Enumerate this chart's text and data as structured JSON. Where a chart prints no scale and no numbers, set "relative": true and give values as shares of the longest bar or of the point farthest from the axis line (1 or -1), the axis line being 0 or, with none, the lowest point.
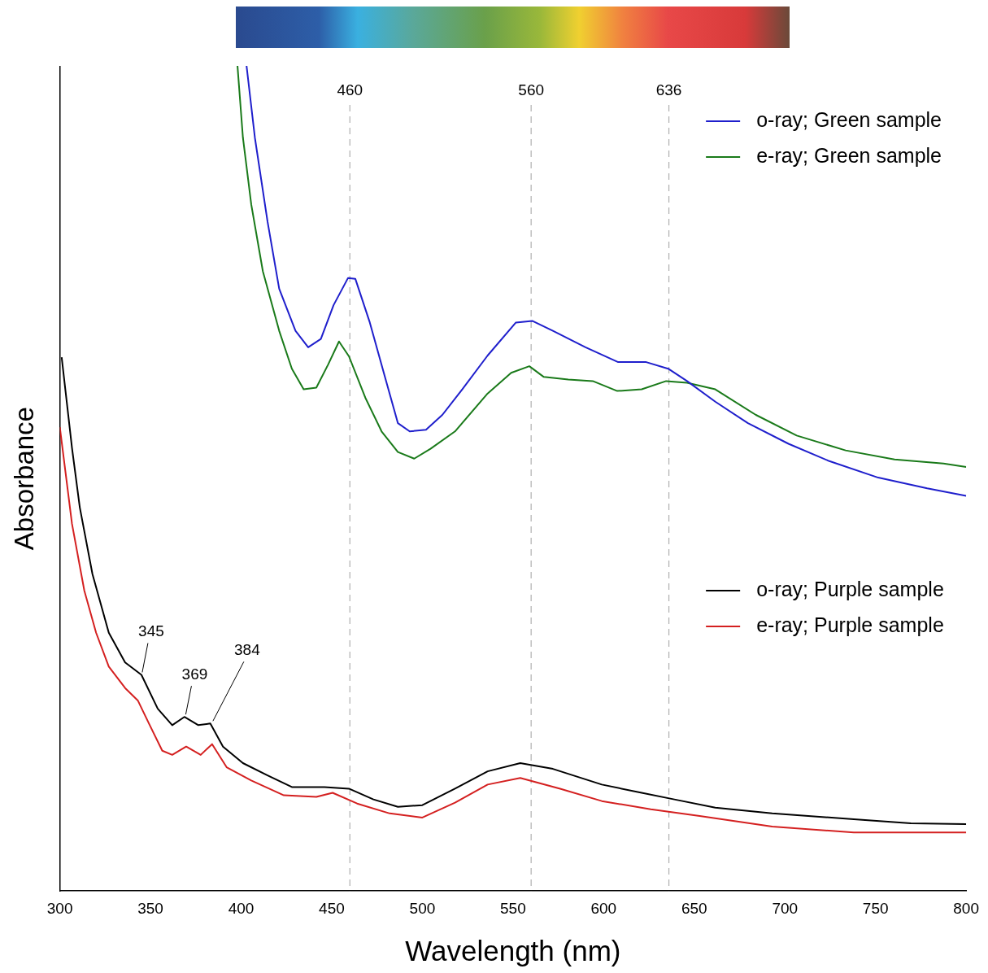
{
  "chart_data": {
    "type": "line",
    "relative": true,
    "xlabel": "Wavelength (nm)",
    "ylabel": "Absorbance",
    "xlim": [
      300,
      800
    ],
    "xticks": [
      300,
      350,
      400,
      450,
      500,
      550,
      600,
      650,
      700,
      750,
      800
    ],
    "grid": false,
    "legend": "right",
    "marker": "none",
    "line_style": "solid",
    "series": [
      {
        "name": "o-ray; Green sample",
        "color": "#1f1fcc",
        "x": [
          403,
          407.6,
          414.6,
          421,
          430,
          437,
          444,
          451,
          459,
          463,
          471,
          480,
          486.5,
          493,
          502,
          511,
          522,
          536,
          551.6,
          560.6,
          572,
          590,
          608,
          623.5,
          635.6,
          646,
          661.6,
          679.6,
          702,
          724.5,
          751.5,
          778.5,
          800
        ],
        "values": [
          1.0,
          0.913,
          0.811,
          0.73,
          0.679,
          0.659,
          0.669,
          0.71,
          0.743,
          0.742,
          0.689,
          0.618,
          0.567,
          0.557,
          0.559,
          0.577,
          0.608,
          0.649,
          0.689,
          0.691,
          0.679,
          0.659,
          0.641,
          0.641,
          0.633,
          0.618,
          0.593,
          0.567,
          0.542,
          0.521,
          0.501,
          0.488,
          0.479
        ]
      },
      {
        "name": "e-ray; Green sample",
        "color": "#1a7a1a",
        "x": [
          398,
          401,
          405.6,
          412,
          421,
          428,
          434.5,
          441.5,
          448,
          454,
          459.5,
          468.5,
          477.5,
          486.5,
          495.5,
          504.5,
          518,
          536,
          549,
          559,
          567,
          580.5,
          594,
          607.5,
          621,
          634.5,
          646,
          661.6,
          684,
          706.5,
          733.5,
          760.5,
          787.5,
          800
        ],
        "values": [
          1.0,
          0.913,
          0.832,
          0.751,
          0.679,
          0.633,
          0.608,
          0.61,
          0.638,
          0.666,
          0.648,
          0.598,
          0.557,
          0.532,
          0.524,
          0.536,
          0.557,
          0.603,
          0.628,
          0.636,
          0.623,
          0.62,
          0.618,
          0.606,
          0.608,
          0.618,
          0.616,
          0.608,
          0.577,
          0.552,
          0.534,
          0.523,
          0.518,
          0.514
        ]
      },
      {
        "name": "o-ray; Purple sample",
        "color": "#000000",
        "x": [
          301,
          306.7,
          311,
          318,
          327,
          336,
          345,
          354,
          362,
          368.7,
          376.4,
          383,
          390,
          401,
          414.6,
          428,
          446,
          459.5,
          473,
          486.5,
          500,
          518,
          536,
          554,
          572,
          599,
          621,
          639,
          661.6,
          693,
          738,
          769.5,
          800
        ],
        "values": [
          0.647,
          0.537,
          0.465,
          0.384,
          0.313,
          0.277,
          0.262,
          0.221,
          0.201,
          0.211,
          0.201,
          0.203,
          0.175,
          0.155,
          0.14,
          0.126,
          0.126,
          0.124,
          0.111,
          0.102,
          0.104,
          0.124,
          0.145,
          0.155,
          0.148,
          0.129,
          0.119,
          0.111,
          0.101,
          0.094,
          0.087,
          0.082,
          0.081
        ]
      },
      {
        "name": "e-ray; Purple sample",
        "color": "#d42020",
        "x": [
          300,
          306.7,
          313.5,
          320,
          327,
          336,
          343,
          349.6,
          356.5,
          362,
          369.7,
          377.7,
          384,
          392,
          405.6,
          423.6,
          441.5,
          450.5,
          464,
          482,
          500,
          518,
          536,
          554,
          576,
          599,
          626,
          653,
          693,
          738,
          800
        ],
        "values": [
          0.562,
          0.445,
          0.364,
          0.313,
          0.272,
          0.246,
          0.231,
          0.201,
          0.17,
          0.165,
          0.175,
          0.165,
          0.178,
          0.15,
          0.134,
          0.116,
          0.114,
          0.119,
          0.106,
          0.094,
          0.089,
          0.107,
          0.129,
          0.137,
          0.124,
          0.109,
          0.099,
          0.091,
          0.078,
          0.071,
          0.071
        ]
      }
    ],
    "ref_lines": [
      {
        "axis": "x",
        "value": 460,
        "label": "460",
        "color": "#b0b0b0",
        "line_style": "dashed"
      },
      {
        "axis": "x",
        "value": 560,
        "label": "560",
        "color": "#b0b0b0",
        "line_style": "dashed"
      },
      {
        "axis": "x",
        "value": 636,
        "label": "636",
        "color": "#b0b0b0",
        "line_style": "dashed"
      }
    ],
    "annotations": [
      {
        "text": "345",
        "x": 345,
        "y": 0.262
      },
      {
        "text": "369",
        "x": 369,
        "y": 0.211
      },
      {
        "text": "384",
        "x": 384,
        "y": 0.203
      }
    ]
  }
}
